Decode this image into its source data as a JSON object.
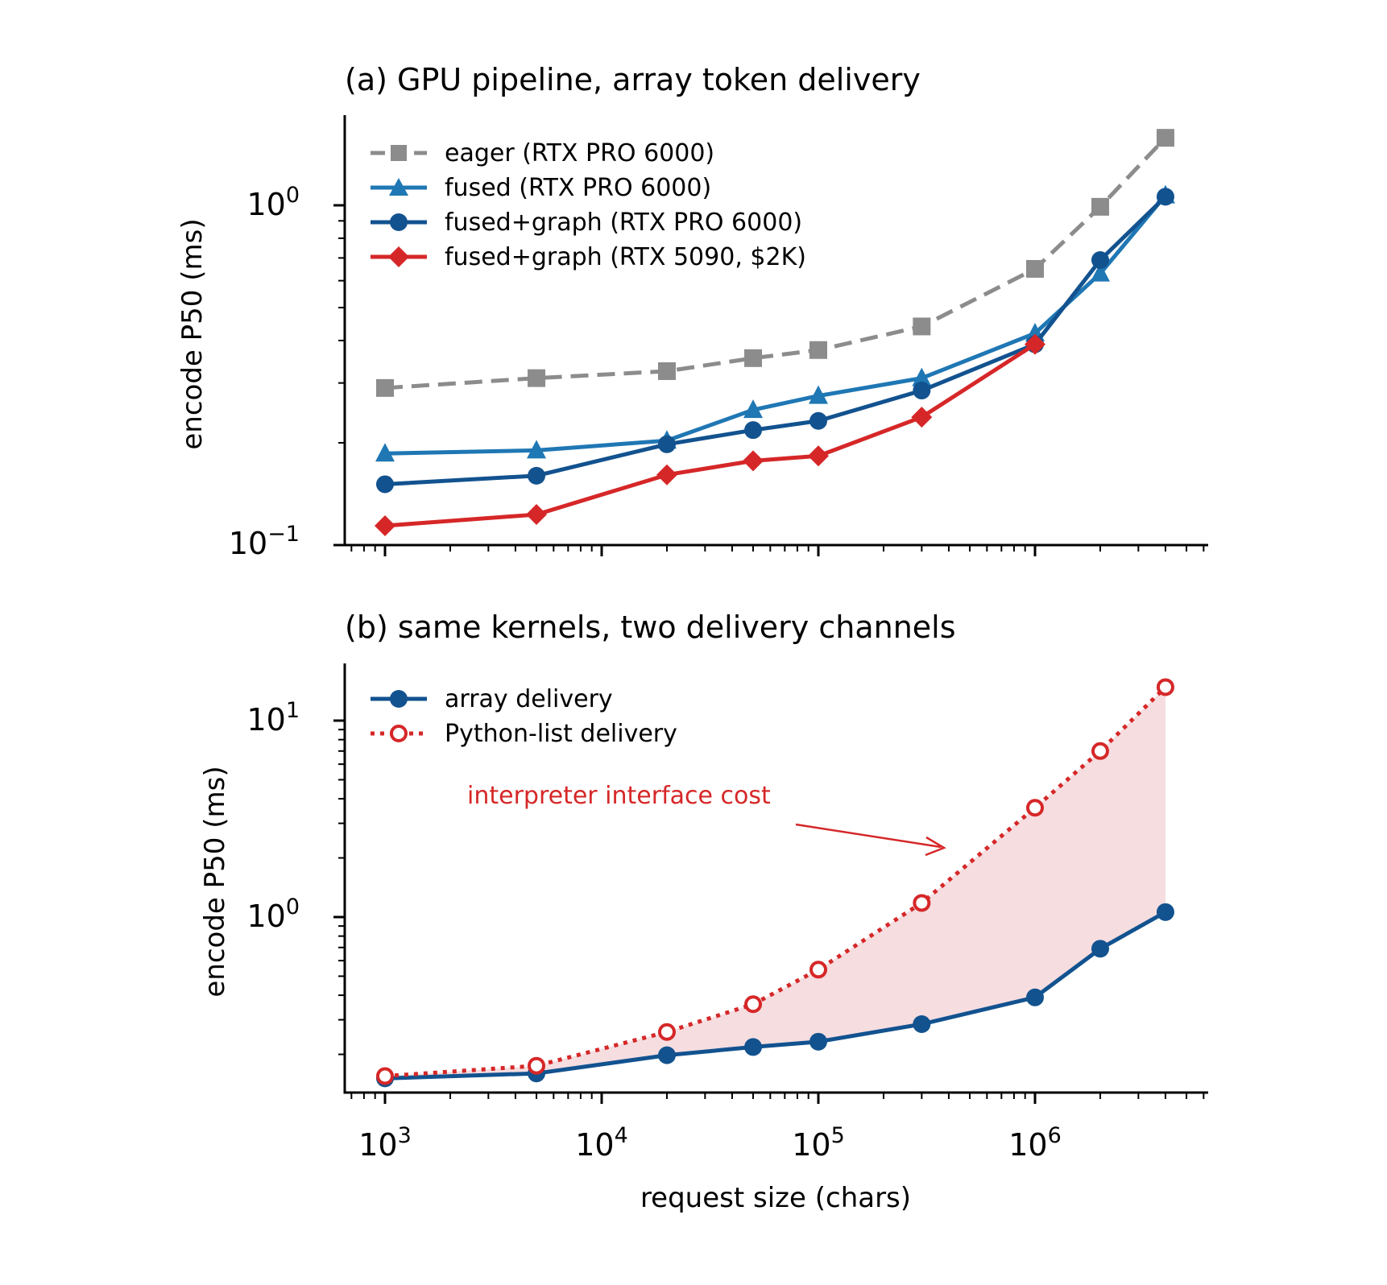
{
  "colors": {
    "eager": "#8c8c8c",
    "fused": "#1f77b4",
    "graph": "#12528f",
    "red": "#d62728",
    "fill": "#f5dde0"
  },
  "xlabel": "request size (chars)",
  "x_ticks": [
    {
      "base": "10",
      "exp": "3"
    },
    {
      "base": "10",
      "exp": "4"
    },
    {
      "base": "10",
      "exp": "5"
    },
    {
      "base": "10",
      "exp": "6"
    }
  ],
  "chart_data": [
    {
      "type": "line",
      "title": "(a) GPU pipeline, array token delivery",
      "ylabel": "encode P50 (ms)",
      "xscale": "log",
      "yscale": "log",
      "xlim": [
        650,
        6000000
      ],
      "ylim": [
        0.1,
        1.8
      ],
      "legend": "top-left",
      "grid": false,
      "y_ticks": [
        {
          "value": 0.1,
          "base": "10",
          "exp": "−1"
        },
        {
          "value": 1,
          "base": "10",
          "exp": "0"
        }
      ],
      "x": [
        1000,
        5000,
        20000,
        50000,
        100000,
        300000,
        1000000,
        2000000,
        4000000
      ],
      "series": [
        {
          "name": "eager (RTX PRO 6000)",
          "key": "eager",
          "marker": "square",
          "dash": true,
          "values": [
            0.29,
            0.31,
            0.325,
            0.355,
            0.375,
            0.44,
            0.65,
            0.99,
            1.58
          ]
        },
        {
          "name": "fused (RTX PRO 6000)",
          "key": "fused",
          "marker": "triangle",
          "dash": false,
          "values": [
            0.186,
            0.19,
            0.203,
            0.25,
            0.275,
            0.31,
            0.42,
            0.63,
            1.07
          ]
        },
        {
          "name": "fused+graph (RTX PRO 6000)",
          "key": "graph",
          "marker": "circle",
          "dash": false,
          "values": [
            0.151,
            0.16,
            0.198,
            0.218,
            0.232,
            0.285,
            0.39,
            0.69,
            1.06
          ]
        },
        {
          "name": "fused+graph (RTX 5090, $2K)",
          "key": "red",
          "marker": "diamond",
          "dash": false,
          "values": [
            0.114,
            0.123,
            0.161,
            0.177,
            0.183,
            0.238,
            0.39,
            null,
            null
          ]
        }
      ]
    },
    {
      "type": "line",
      "title": "(b) same kernels, two delivery channels",
      "ylabel": "encode P50 (ms)",
      "xscale": "log",
      "yscale": "log",
      "xlim": [
        650,
        6000000
      ],
      "ylim": [
        0.125,
        19
      ],
      "legend": "top-left",
      "grid": false,
      "y_ticks": [
        {
          "value": 1,
          "base": "10",
          "exp": "0"
        },
        {
          "value": 10,
          "base": "10",
          "exp": "1"
        }
      ],
      "x": [
        1000,
        5000,
        20000,
        50000,
        100000,
        300000,
        1000000,
        2000000,
        4000000
      ],
      "series": [
        {
          "name": "array delivery",
          "key": "graph",
          "marker": "circle",
          "dash": false,
          "values": [
            0.151,
            0.16,
            0.198,
            0.218,
            0.232,
            0.285,
            0.39,
            0.69,
            1.06
          ]
        },
        {
          "name": "Python-list delivery",
          "key": "red",
          "marker": "open-circle",
          "dash": true,
          "values": [
            0.155,
            0.175,
            0.26,
            0.36,
            0.54,
            1.18,
            3.6,
            7.0,
            14.8
          ]
        }
      ],
      "annotation": {
        "text": "interpreter interface cost",
        "x": 400000,
        "y": 2.1
      }
    }
  ]
}
